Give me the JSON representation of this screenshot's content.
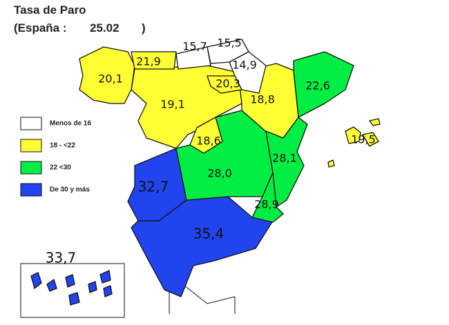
{
  "header": {
    "title": "Tasa de Paro",
    "subtitle_prefix": "(España :",
    "national_value": "25.02",
    "subtitle_suffix": ")"
  },
  "legend": [
    {
      "label": "Menos de 16",
      "color": "#ffffff"
    },
    {
      "label": "18 - <22",
      "color": "#ffff33"
    },
    {
      "label": "22 <30",
      "color": "#00ee44"
    },
    {
      "label": "De 30 y más",
      "color": "#2244ee"
    }
  ],
  "regions": [
    {
      "label": "33,7",
      "color": "#2244ee"
    },
    {
      "label": "35,4",
      "color": "#2244ee"
    },
    {
      "label": "32,7",
      "color": "#2244ee"
    },
    {
      "label": "28,0",
      "color": "#00ee44"
    },
    {
      "label": "19,1",
      "color": "#ffff33"
    },
    {
      "label": "18,6",
      "color": "#ffff33"
    },
    {
      "label": "18,8",
      "color": "#ffff33"
    },
    {
      "label": "22,6",
      "color": "#00ee44"
    },
    {
      "label": "28,1",
      "color": "#00ee44"
    },
    {
      "label": "28,9",
      "color": "#00ee44"
    },
    {
      "label": "20,1",
      "color": "#ffff33"
    },
    {
      "label": "21,9",
      "color": "#ffff33"
    },
    {
      "label": "15,7",
      "color": "#ffffff"
    },
    {
      "label": "15,5",
      "color": "#ffffff"
    },
    {
      "label": "14,9",
      "color": "#ffffff"
    },
    {
      "label": "20,3",
      "color": "#ffff33"
    },
    {
      "label": "19,5",
      "color": "#ffff33"
    }
  ]
}
